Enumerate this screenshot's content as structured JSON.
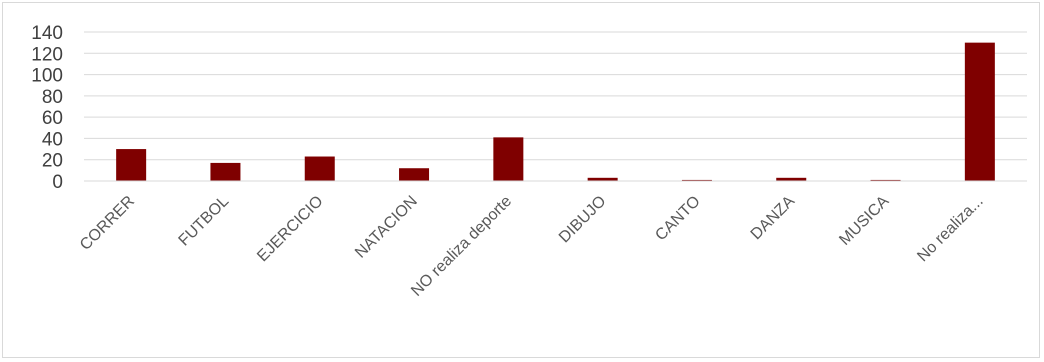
{
  "chart_data": {
    "type": "bar",
    "title": "",
    "xlabel": "",
    "ylabel": "",
    "categories": [
      "CORRER",
      "FUTBOL",
      "EJERCICIO",
      "NATACION",
      "NO realiza deporte",
      "DIBUJO",
      "CANTO",
      "DANZA",
      "MUSICA",
      "No realiza..."
    ],
    "values": [
      30,
      17,
      23,
      12,
      41,
      3,
      1,
      3,
      1,
      130
    ],
    "ylim": [
      0,
      140
    ],
    "yticks": [
      0,
      20,
      40,
      60,
      80,
      100,
      120,
      140
    ],
    "grid": true,
    "legend": "none",
    "bar_color": "#7f0000",
    "grid_color": "#d9d9d9",
    "label_rotation_deg": -45
  }
}
